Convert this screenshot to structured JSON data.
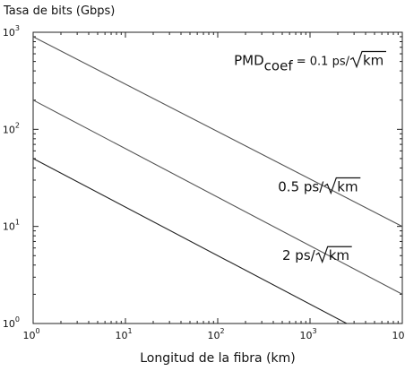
{
  "chart_data": {
    "type": "line",
    "ylabel": "Tasa de bits (Gbps)",
    "xlabel": "Longitud de la fibra (km)",
    "x_scale": "log",
    "y_scale": "log",
    "xlim": [
      1,
      10000
    ],
    "ylim": [
      1,
      1000
    ],
    "x_ticks": [
      {
        "value": 1,
        "label": "10",
        "exp": "0"
      },
      {
        "value": 10,
        "label": "10",
        "exp": "1"
      },
      {
        "value": 100,
        "label": "10",
        "exp": "2"
      },
      {
        "value": 1000,
        "label": "10",
        "exp": "3"
      },
      {
        "value": 10000,
        "label": "10",
        "exp": "4"
      }
    ],
    "y_ticks": [
      {
        "value": 1,
        "label": "10",
        "exp": "0"
      },
      {
        "value": 10,
        "label": "10",
        "exp": "1"
      },
      {
        "value": 100,
        "label": "10",
        "exp": "2"
      },
      {
        "value": 1000,
        "label": "10",
        "exp": "3"
      }
    ],
    "grid": false,
    "series": [
      {
        "x": [
          1,
          10000
        ],
        "y": [
          900,
          10
        ],
        "color": "#555555"
      },
      {
        "x": [
          1,
          10000
        ],
        "y": [
          200,
          2
        ],
        "color": "#555555"
      },
      {
        "x": [
          1,
          2500
        ],
        "y": [
          50,
          1
        ],
        "color": "#222222"
      }
    ],
    "annotations": [
      {
        "prefix": "PMD",
        "sub": "coef",
        "value": " = 0.1 ps/",
        "unit": "km",
        "x": 150,
        "y": 460
      },
      {
        "prefix": "",
        "sub": "",
        "value": "0.5 ps/",
        "unit": "km",
        "x": 450,
        "y": 23
      },
      {
        "prefix": "",
        "sub": "",
        "value": "2 ps/",
        "unit": "km",
        "x": 500,
        "y": 4.5
      }
    ]
  }
}
